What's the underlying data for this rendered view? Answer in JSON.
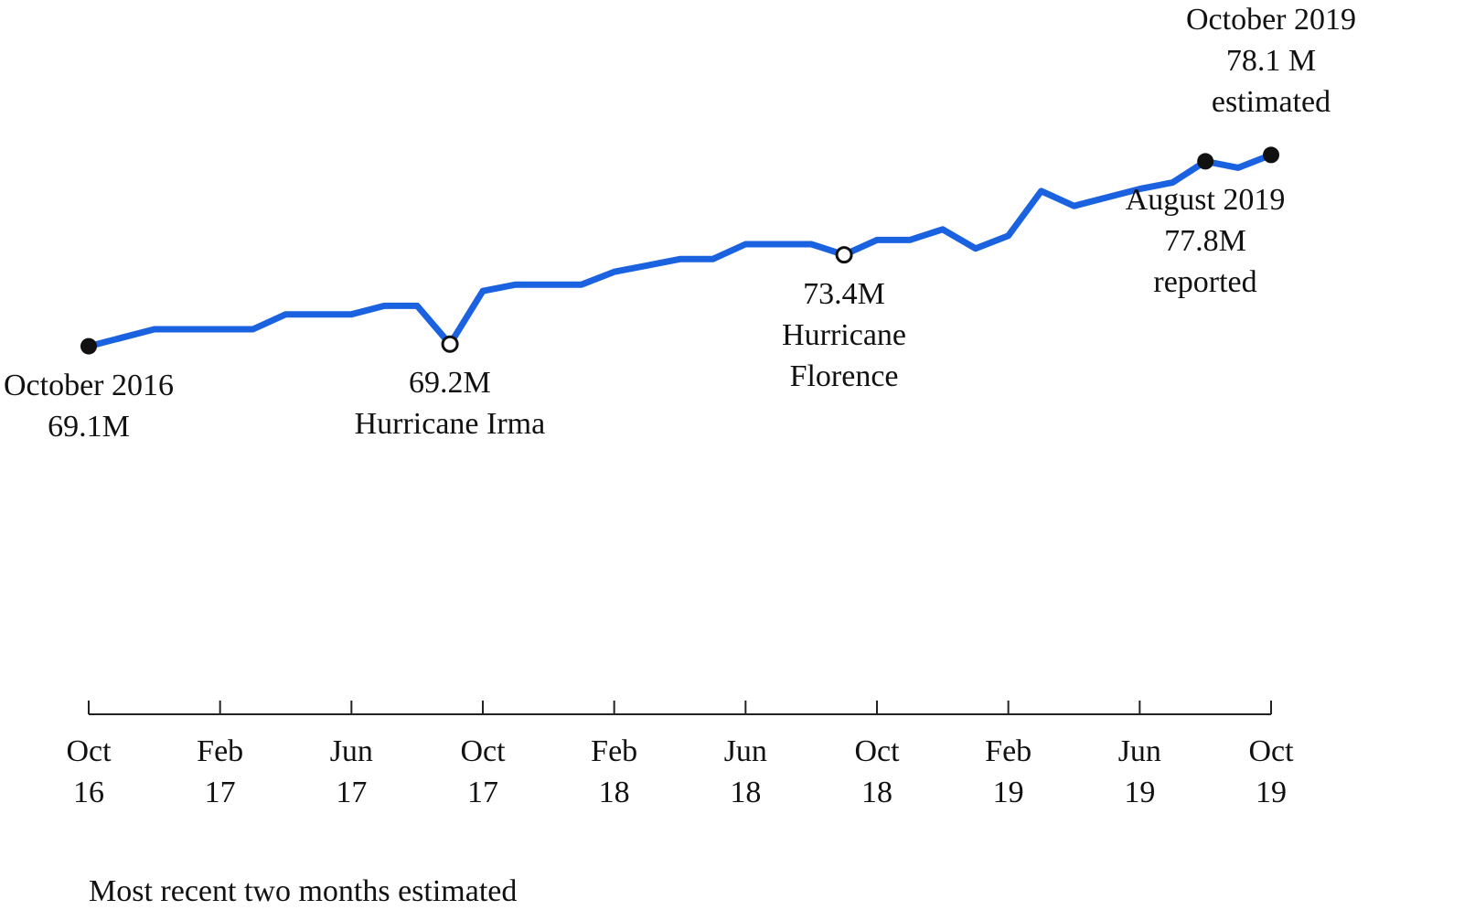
{
  "chart_data": {
    "type": "line",
    "title": "",
    "xlabel": "",
    "ylabel": "",
    "line_color": "#1a62e0",
    "x": [
      "2016-10",
      "2016-11",
      "2016-12",
      "2017-01",
      "2017-02",
      "2017-03",
      "2017-04",
      "2017-05",
      "2017-06",
      "2017-07",
      "2017-08",
      "2017-09",
      "2017-10",
      "2017-11",
      "2017-12",
      "2018-01",
      "2018-02",
      "2018-03",
      "2018-04",
      "2018-05",
      "2018-06",
      "2018-07",
      "2018-08",
      "2018-09",
      "2018-10",
      "2018-11",
      "2018-12",
      "2019-01",
      "2019-02",
      "2019-03",
      "2019-04",
      "2019-05",
      "2019-06",
      "2019-07",
      "2019-08",
      "2019-09",
      "2019-10"
    ],
    "values": [
      69.1,
      69.5,
      69.9,
      69.9,
      69.9,
      69.9,
      70.6,
      70.6,
      70.6,
      71.0,
      71.0,
      69.2,
      71.7,
      72.0,
      72.0,
      72.0,
      72.6,
      72.9,
      73.2,
      73.2,
      73.9,
      73.9,
      73.9,
      73.4,
      74.1,
      74.1,
      74.6,
      73.7,
      74.3,
      76.4,
      75.7,
      76.1,
      76.5,
      76.8,
      77.8,
      77.5,
      78.1
    ],
    "ylim": [
      54,
      79
    ],
    "grid": false,
    "x_ticks": [
      {
        "x": "2016-10",
        "line1": "Oct",
        "line2": "16"
      },
      {
        "x": "2017-02",
        "line1": "Feb",
        "line2": "17"
      },
      {
        "x": "2017-06",
        "line1": "Jun",
        "line2": "17"
      },
      {
        "x": "2017-10",
        "line1": "Oct",
        "line2": "17"
      },
      {
        "x": "2018-02",
        "line1": "Feb",
        "line2": "18"
      },
      {
        "x": "2018-06",
        "line1": "Jun",
        "line2": "18"
      },
      {
        "x": "2018-10",
        "line1": "Oct",
        "line2": "18"
      },
      {
        "x": "2019-02",
        "line1": "Feb",
        "line2": "19"
      },
      {
        "x": "2019-06",
        "line1": "Jun",
        "line2": "19"
      },
      {
        "x": "2019-10",
        "line1": "Oct",
        "line2": "19"
      }
    ],
    "markers": [
      {
        "x": "2016-10",
        "value": 69.1,
        "style": "filled"
      },
      {
        "x": "2017-09",
        "value": 69.2,
        "style": "open"
      },
      {
        "x": "2018-09",
        "value": 73.4,
        "style": "open"
      },
      {
        "x": "2019-08",
        "value": 77.8,
        "style": "filled"
      },
      {
        "x": "2019-10",
        "value": 78.1,
        "style": "filled"
      }
    ],
    "annotations": [
      {
        "id": "oct2016",
        "x": "2016-10",
        "placement": "below",
        "lines": [
          "October 2016",
          "69.1M"
        ]
      },
      {
        "id": "irma",
        "x": "2017-09",
        "placement": "below",
        "lines": [
          "69.2M",
          "Hurricane Irma"
        ]
      },
      {
        "id": "florence",
        "x": "2018-09",
        "placement": "below",
        "lines": [
          "73.4M",
          "Hurricane",
          "Florence"
        ]
      },
      {
        "id": "aug2019",
        "x": "2019-08",
        "placement": "below",
        "lines": [
          "August 2019",
          "77.8M",
          "reported"
        ]
      },
      {
        "id": "oct2019",
        "x": "2019-10",
        "placement": "above",
        "lines": [
          "October 2019",
          "78.1 M",
          "estimated"
        ]
      }
    ],
    "footnote": "Most recent two months estimated"
  }
}
